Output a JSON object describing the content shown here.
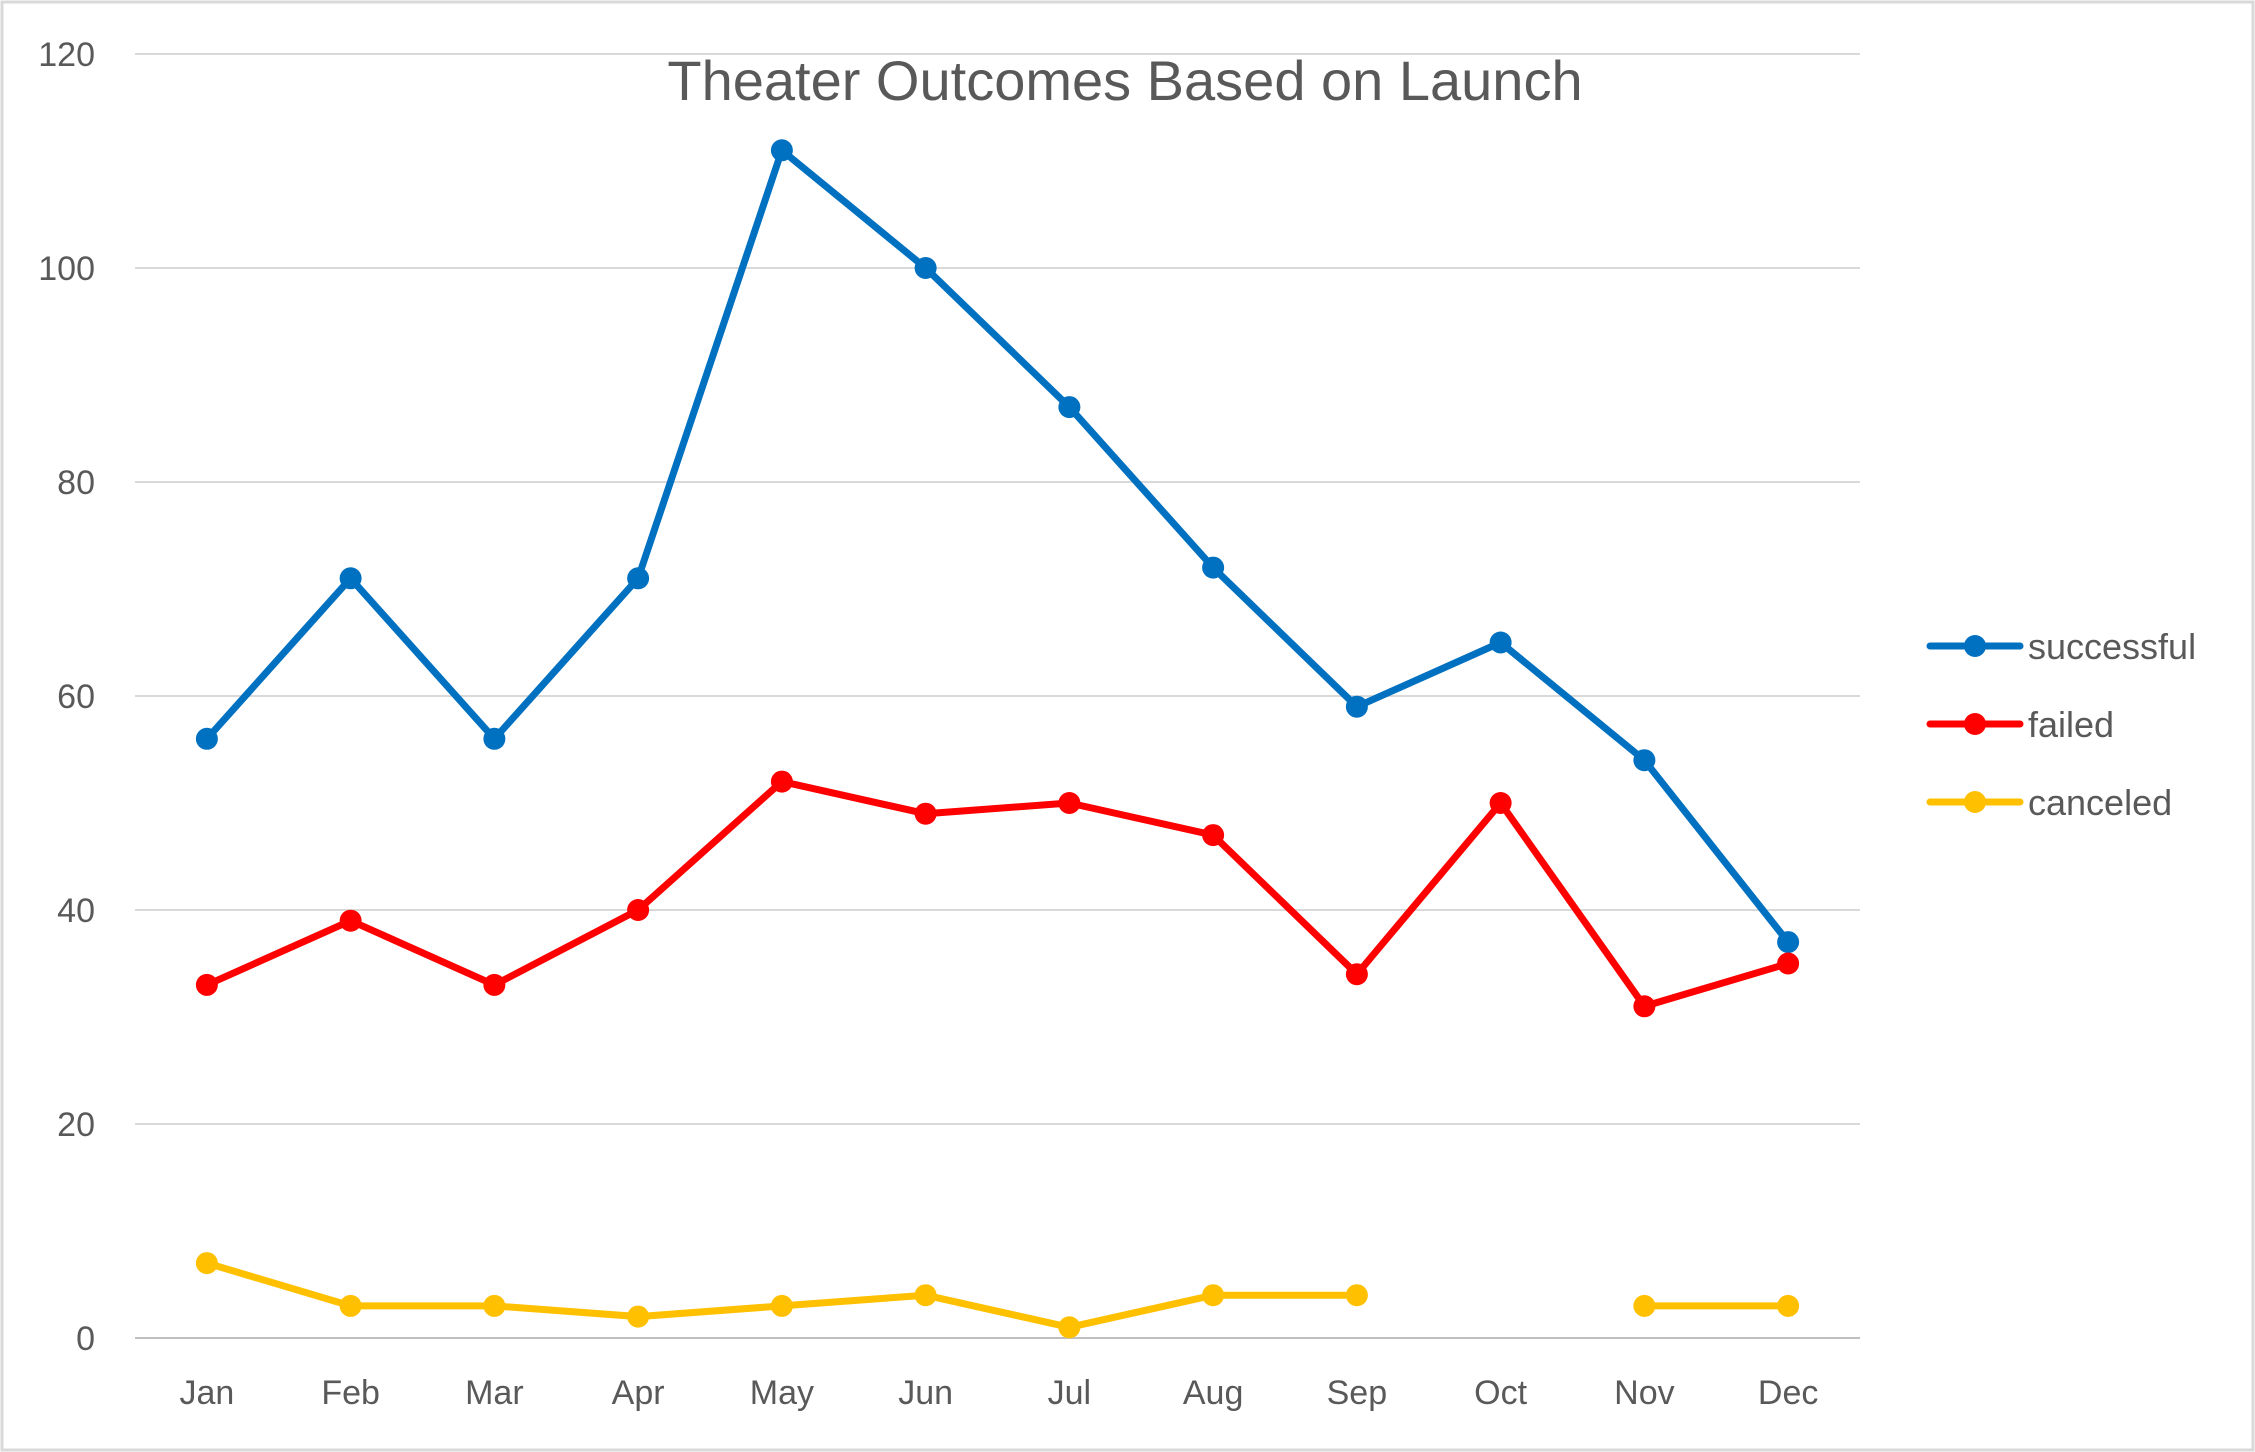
{
  "chart_data": {
    "type": "line",
    "title": "Theater Outcomes Based on Launch",
    "xlabel": "",
    "ylabel": "",
    "categories": [
      "Jan",
      "Feb",
      "Mar",
      "Apr",
      "May",
      "Jun",
      "Jul",
      "Aug",
      "Sep",
      "Oct",
      "Nov",
      "Dec"
    ],
    "ylim": [
      0,
      120
    ],
    "yticks": [
      0,
      20,
      40,
      60,
      80,
      100,
      120
    ],
    "grid": true,
    "legend_position": "right",
    "series": [
      {
        "name": "successful",
        "color": "#0070C0",
        "values": [
          56,
          71,
          56,
          71,
          111,
          100,
          87,
          72,
          59,
          65,
          54,
          37
        ]
      },
      {
        "name": "failed",
        "color": "#FF0000",
        "values": [
          33,
          39,
          33,
          40,
          52,
          49,
          50,
          47,
          34,
          50,
          31,
          35
        ]
      },
      {
        "name": "canceled",
        "color": "#FFC000",
        "values": [
          7,
          3,
          3,
          2,
          3,
          4,
          1,
          4,
          4,
          null,
          3,
          3
        ]
      }
    ]
  }
}
